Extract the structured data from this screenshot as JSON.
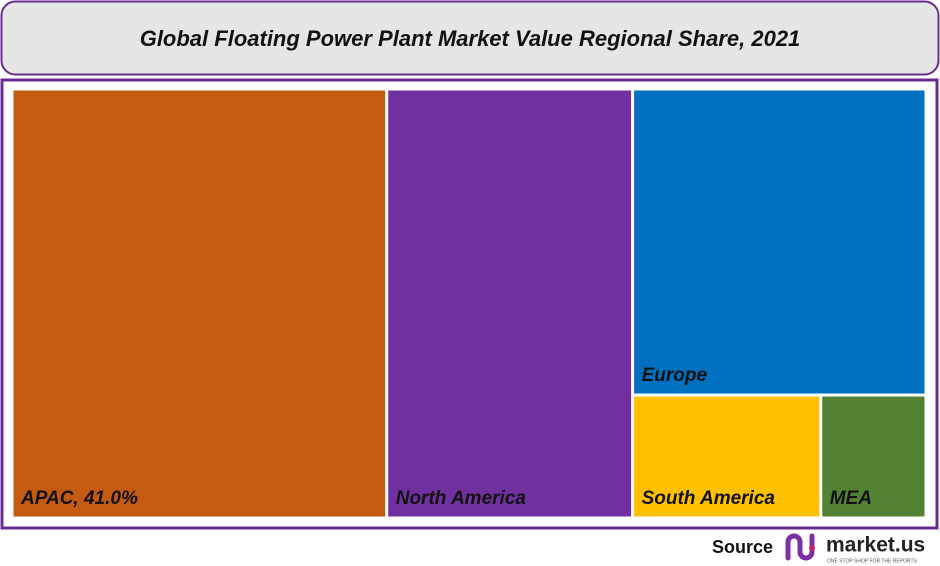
{
  "chart_data": {
    "type": "treemap",
    "title": "Global Floating Power Plant Market Value Regional Share, 2021",
    "categories": [
      "APAC, 41.0%",
      "North America",
      "Europe",
      "South America",
      "MEA"
    ],
    "values": [
      41.0,
      26.9,
      22.9,
      5.9,
      3.3
    ],
    "colors": [
      "#c55a11",
      "#7030a0",
      "#0070c0",
      "#ffc000",
      "#548235"
    ]
  },
  "footer": {
    "source": "Source",
    "brand": "market.us",
    "tagline": "ONE STOP SHOP FOR THE REPORTS"
  }
}
